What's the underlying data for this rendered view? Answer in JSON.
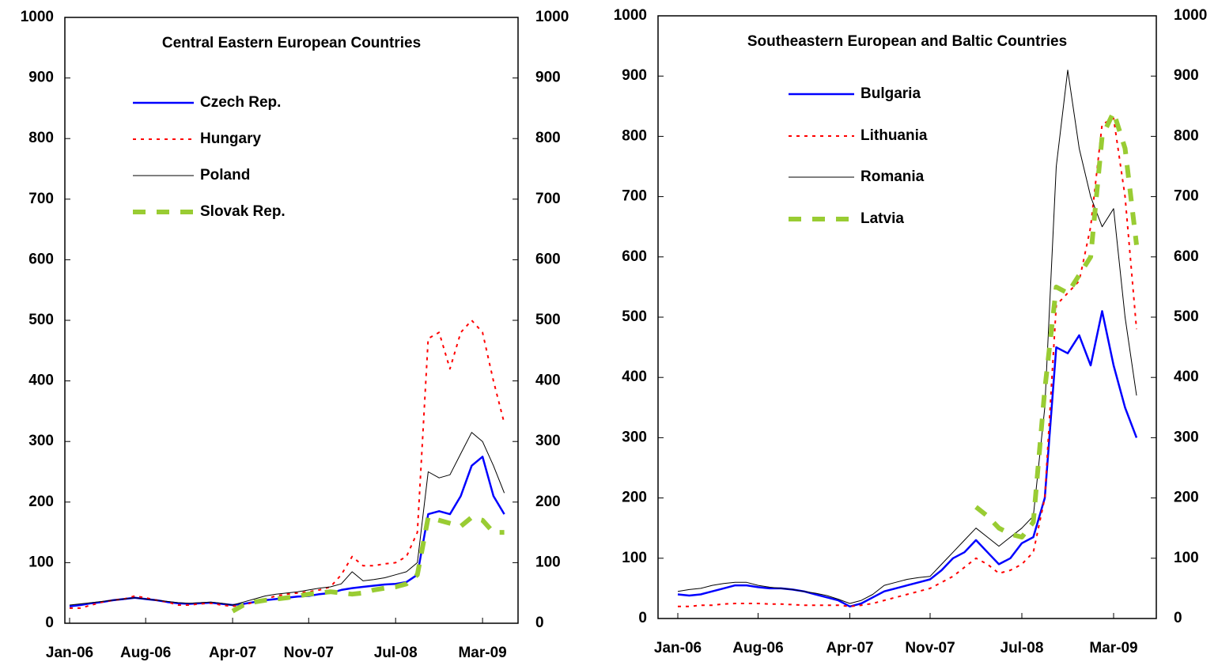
{
  "chart_data": [
    {
      "type": "line",
      "title": "Central Eastern European Countries",
      "x": [
        "Jan-06",
        null,
        null,
        null,
        null,
        null,
        null,
        "Aug-06",
        null,
        null,
        null,
        null,
        null,
        null,
        null,
        "Apr-07",
        null,
        null,
        null,
        null,
        null,
        null,
        "Nov-07",
        null,
        null,
        null,
        null,
        null,
        null,
        null,
        "Jul-08",
        null,
        null,
        null,
        null,
        null,
        null,
        null,
        "Mar-09",
        null,
        null
      ],
      "ylim": [
        0,
        1000
      ],
      "yticks": [
        0,
        100,
        200,
        300,
        400,
        500,
        600,
        700,
        800,
        900,
        1000
      ],
      "y2lim": [
        0,
        1000
      ],
      "y2ticks": [
        0,
        100,
        200,
        300,
        400,
        500,
        600,
        700,
        800,
        900,
        1000
      ],
      "series": [
        {
          "name": "Czech Rep.",
          "color": "#0000ff",
          "dash": "solid",
          "values": [
            28,
            30,
            33,
            35,
            38,
            40,
            42,
            40,
            38,
            35,
            33,
            32,
            33,
            34,
            32,
            30,
            32,
            35,
            38,
            40,
            42,
            44,
            45,
            48,
            50,
            55,
            58,
            60,
            62,
            64,
            65,
            68,
            80,
            180,
            185,
            180,
            210,
            260,
            275,
            210,
            180
          ]
        },
        {
          "name": "Hungary",
          "color": "#ff0000",
          "dash": "dotted",
          "values": [
            25,
            25,
            30,
            35,
            38,
            40,
            45,
            42,
            38,
            35,
            30,
            30,
            32,
            33,
            30,
            28,
            30,
            35,
            40,
            45,
            48,
            50,
            52,
            55,
            60,
            80,
            110,
            95,
            95,
            98,
            100,
            110,
            150,
            470,
            480,
            420,
            480,
            500,
            480,
            400,
            330
          ]
        },
        {
          "name": "Poland",
          "color": "#000000",
          "dash": "thin",
          "values": [
            30,
            32,
            34,
            36,
            38,
            40,
            42,
            40,
            38,
            36,
            34,
            33,
            34,
            35,
            33,
            30,
            35,
            40,
            45,
            48,
            50,
            52,
            55,
            58,
            60,
            65,
            85,
            70,
            72,
            75,
            80,
            85,
            100,
            250,
            240,
            245,
            280,
            315,
            300,
            260,
            215
          ]
        },
        {
          "name": "Slovak Rep.",
          "color": "#99cc33",
          "dash": "dashed",
          "values": [
            null,
            null,
            null,
            null,
            null,
            null,
            null,
            null,
            null,
            null,
            null,
            null,
            null,
            null,
            null,
            20,
            30,
            35,
            38,
            40,
            42,
            45,
            48,
            50,
            52,
            50,
            48,
            50,
            55,
            58,
            60,
            65,
            80,
            175,
            170,
            165,
            160,
            175,
            170,
            150,
            150
          ]
        }
      ]
    },
    {
      "type": "line",
      "title": "Southeastern European and Baltic Countries",
      "x": [
        "Jan-06",
        null,
        null,
        null,
        null,
        null,
        null,
        "Aug-06",
        null,
        null,
        null,
        null,
        null,
        null,
        null,
        "Apr-07",
        null,
        null,
        null,
        null,
        null,
        null,
        "Nov-07",
        null,
        null,
        null,
        null,
        null,
        null,
        null,
        "Jul-08",
        null,
        null,
        null,
        null,
        null,
        null,
        null,
        "Mar-09",
        null,
        null
      ],
      "ylim": [
        0,
        1000
      ],
      "yticks": [
        0,
        100,
        200,
        300,
        400,
        500,
        600,
        700,
        800,
        900,
        1000
      ],
      "y2lim": [
        0,
        1000
      ],
      "y2ticks": [
        0,
        100,
        200,
        300,
        400,
        500,
        600,
        700,
        800,
        900,
        1000
      ],
      "series": [
        {
          "name": "Bulgaria",
          "color": "#0000ff",
          "dash": "solid",
          "values": [
            40,
            38,
            40,
            45,
            50,
            55,
            55,
            52,
            50,
            50,
            48,
            45,
            40,
            35,
            30,
            20,
            25,
            35,
            45,
            50,
            55,
            60,
            65,
            80,
            100,
            110,
            130,
            110,
            90,
            100,
            125,
            135,
            200,
            450,
            440,
            470,
            420,
            510,
            420,
            350,
            300
          ]
        },
        {
          "name": "Lithuania",
          "color": "#ff0000",
          "dash": "dotted",
          "values": [
            20,
            20,
            22,
            22,
            24,
            25,
            25,
            25,
            24,
            24,
            23,
            22,
            22,
            22,
            22,
            20,
            22,
            25,
            30,
            35,
            40,
            45,
            50,
            60,
            70,
            85,
            100,
            90,
            75,
            80,
            90,
            110,
            200,
            520,
            540,
            560,
            650,
            820,
            830,
            700,
            480
          ]
        },
        {
          "name": "Romania",
          "color": "#000000",
          "dash": "thin",
          "values": [
            45,
            48,
            50,
            55,
            58,
            60,
            60,
            55,
            52,
            50,
            48,
            45,
            42,
            38,
            32,
            25,
            30,
            40,
            55,
            60,
            65,
            68,
            70,
            90,
            110,
            130,
            150,
            135,
            120,
            135,
            150,
            170,
            350,
            750,
            910,
            780,
            700,
            650,
            680,
            500,
            370
          ]
        },
        {
          "name": "Latvia",
          "color": "#99cc33",
          "dash": "dashed",
          "values": [
            null,
            null,
            null,
            null,
            null,
            null,
            null,
            null,
            null,
            null,
            null,
            null,
            null,
            null,
            null,
            null,
            null,
            null,
            null,
            null,
            null,
            null,
            null,
            null,
            null,
            null,
            185,
            170,
            150,
            140,
            135,
            160,
            380,
            550,
            540,
            570,
            600,
            800,
            840,
            780,
            620
          ]
        }
      ]
    }
  ]
}
